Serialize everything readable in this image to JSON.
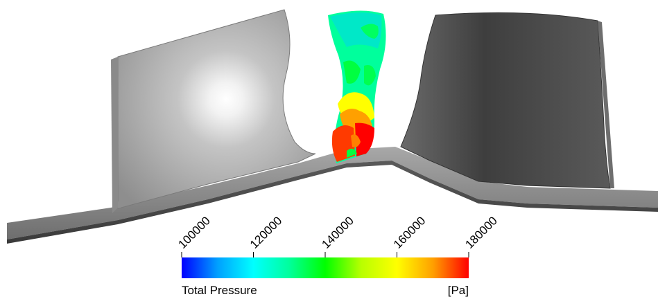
{
  "legend": {
    "title": "Total Pressure",
    "unit": "[Pa]",
    "min": 100000,
    "max": 180000,
    "ticks": [
      "100000",
      "120000",
      "140000",
      "160000",
      "180000"
    ],
    "colormap": [
      "#0000ff",
      "#00a0ff",
      "#00ffff",
      "#00ff9c",
      "#00ff00",
      "#b8ff00",
      "#ffff00",
      "#ffa000",
      "#ff0000"
    ]
  },
  "colors": {
    "blade_light": "#d6d6d6",
    "blade_dark": "#4a4a4a",
    "hub": "#8c8c8c",
    "edge": "#2a2a2a"
  }
}
